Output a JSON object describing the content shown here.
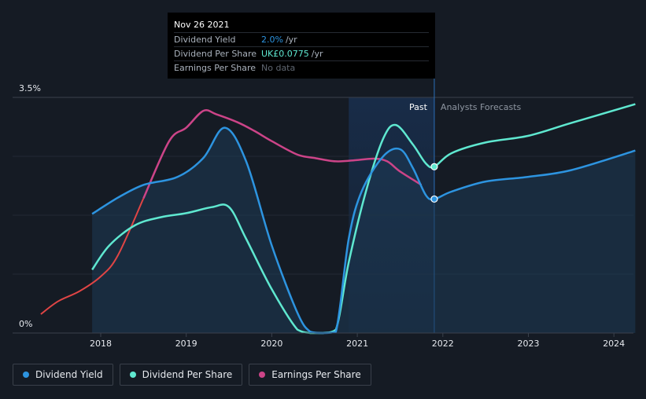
{
  "chart_data": {
    "type": "line",
    "x_ticks": [
      "2018",
      "2019",
      "2020",
      "2021",
      "2022",
      "2023",
      "2024"
    ],
    "y_ticks": [
      "0%",
      "3.5%"
    ],
    "ylim": [
      0,
      3.5
    ],
    "xlim": [
      2017.2,
      2024.25
    ],
    "colors": {
      "dividend_yield": "#2d94e0",
      "dividend_per_share": "#5fe8d0",
      "earnings_per_share": "#cc4488",
      "earnings_per_share_early": "#e04545"
    },
    "past_label": "Past",
    "forecast_label": "Analysts Forecasts",
    "past_boundary_x": 2021.9,
    "past_shade_start_x": 2020.9,
    "series": [
      {
        "name": "Dividend Yield",
        "key": "dividend_yield",
        "x": [
          2017.9,
          2018.2,
          2018.5,
          2018.9,
          2019.2,
          2019.45,
          2019.7,
          2020.0,
          2020.3,
          2020.45,
          2020.6,
          2020.75,
          2020.9,
          2021.05,
          2021.3,
          2021.5,
          2021.65,
          2021.8,
          2021.9,
          2022.1,
          2022.5,
          2023.0,
          2023.5,
          2024.25
        ],
        "y": [
          1.77,
          2.01,
          2.2,
          2.32,
          2.6,
          3.05,
          2.55,
          1.3,
          0.3,
          0.02,
          0.0,
          0.02,
          1.4,
          2.1,
          2.62,
          2.73,
          2.45,
          2.05,
          1.99,
          2.1,
          2.25,
          2.32,
          2.42,
          2.71
        ]
      },
      {
        "name": "Dividend Per Share",
        "key": "dividend_per_share",
        "x": [
          2017.9,
          2018.1,
          2018.4,
          2018.7,
          2019.0,
          2019.3,
          2019.5,
          2019.7,
          2020.0,
          2020.3,
          2020.45,
          2020.6,
          2020.75,
          2020.9,
          2021.1,
          2021.3,
          2021.45,
          2021.65,
          2021.8,
          2021.9,
          2022.1,
          2022.5,
          2023.0,
          2023.5,
          2024.25
        ],
        "y": [
          0.94,
          1.3,
          1.6,
          1.72,
          1.78,
          1.87,
          1.87,
          1.4,
          0.65,
          0.05,
          0.0,
          0.0,
          0.05,
          1.05,
          2.1,
          2.88,
          3.09,
          2.8,
          2.52,
          2.47,
          2.67,
          2.83,
          2.93,
          3.12,
          3.4
        ]
      },
      {
        "name": "Earnings Per Share",
        "key": "earnings_per_share",
        "x": [
          2017.3,
          2017.5,
          2017.75,
          2018.0,
          2018.2,
          2018.5,
          2018.8,
          2019.0,
          2019.2,
          2019.35,
          2019.6,
          2019.8,
          2020.0,
          2020.3,
          2020.5,
          2020.75,
          2021.0,
          2021.2,
          2021.35,
          2021.5,
          2021.75
        ],
        "y": [
          0.28,
          0.47,
          0.62,
          0.84,
          1.15,
          2.0,
          2.85,
          3.05,
          3.3,
          3.25,
          3.13,
          3.0,
          2.85,
          2.65,
          2.6,
          2.55,
          2.57,
          2.59,
          2.55,
          2.4,
          2.2
        ]
      }
    ],
    "markers": [
      {
        "key": "dividend_yield",
        "x": 2021.9,
        "y": 1.99
      },
      {
        "key": "dividend_per_share",
        "x": 2021.9,
        "y": 2.47
      }
    ]
  },
  "tooltip": {
    "date": "Nov 26 2021",
    "rows": [
      {
        "label": "Dividend Yield",
        "value": "2.0%",
        "unit": "/yr",
        "color": "#2d94e0"
      },
      {
        "label": "Dividend Per Share",
        "value": "UK£0.0775",
        "unit": "/yr",
        "color": "#5fe8d0"
      },
      {
        "label": "Earnings Per Share",
        "value": "No data"
      }
    ]
  },
  "legend": [
    {
      "label": "Dividend Yield",
      "color": "#2d94e0"
    },
    {
      "label": "Dividend Per Share",
      "color": "#5fe8d0"
    },
    {
      "label": "Earnings Per Share",
      "color": "#cc4488"
    }
  ]
}
